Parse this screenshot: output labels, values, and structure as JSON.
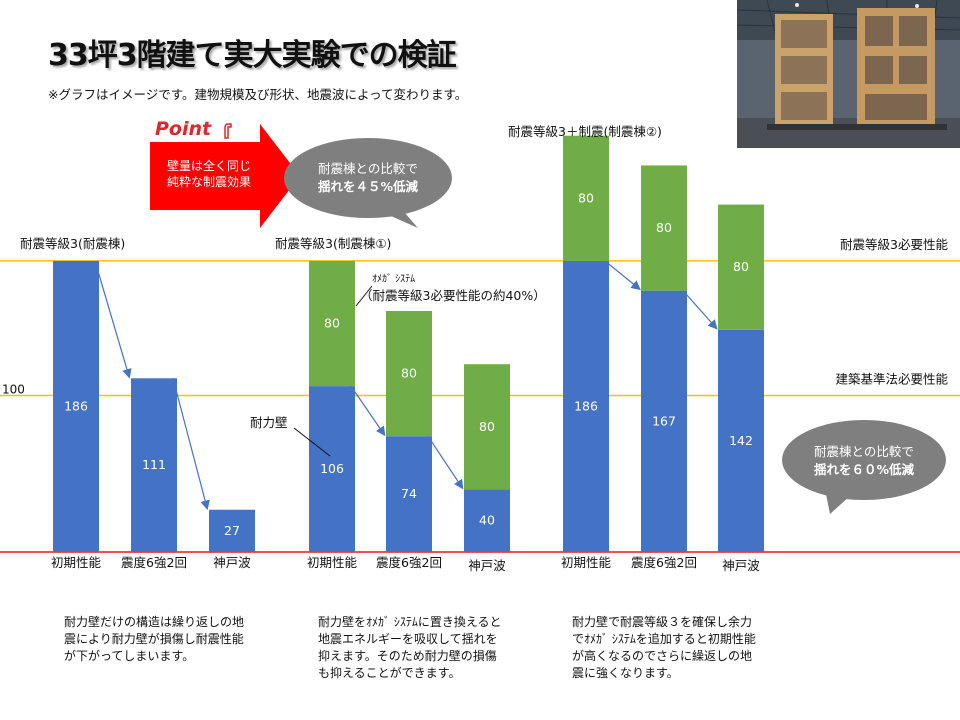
{
  "title": "33坪3階建て実大実験での検証",
  "note": "※グラフはイメージです。建物規模及び形状、地震波によって変わります。",
  "photo_alt": "実大実験の木造3階建て試験体",
  "point": {
    "label": "Point",
    "arrow_text": "壁量は全く同じ\n純粋な制震効果"
  },
  "bubbles": {
    "first": {
      "line1": "耐震棟との比較で",
      "line2": "揺れを４５%低減"
    },
    "second": {
      "line1": "耐震棟との比較で",
      "line2": "揺れを６０%低減"
    }
  },
  "annotations": {
    "omega": "ｵﾒｶﾞ ｼｽﾃﾑ",
    "omega_sub": "（耐震等級3必要性能の約40%）",
    "wall": "耐力壁"
  },
  "explanations": [
    "耐力壁だけの構造は繰り返しの地震により耐力壁が損傷し耐震性能が下がってしまいます。",
    "耐力壁をｵﾒｶﾞ ｼｽﾃﾑに置き換えると地震エネルギーを吸収して揺れを抑えます。そのため耐力壁の損傷も抑えることができます。",
    "耐力壁で耐震等級３を確保し余力でｵﾒｶﾞ ｼｽﾃﾑを追加すると初期性能が高くなるのでさらに繰返しの地震に強くなります。"
  ],
  "colors": {
    "blue": "#4472C4",
    "green": "#70AD47",
    "yellow_line": "#FFC000",
    "red_line": "#E31A1C",
    "arrow_red": "#FF0000",
    "bubble_gray": "#7F7F7F"
  },
  "chart_data": {
    "type": "bar",
    "stacked": true,
    "ylim": [
      0,
      266
    ],
    "reference_lines": [
      {
        "value": 186,
        "label": "耐震等級3必要性能",
        "color": "#FFC000"
      },
      {
        "value": 100,
        "label": "建築基準法必要性能",
        "color": "#FFC000",
        "axis_label": "100"
      },
      {
        "value": 0,
        "color": "#E31A1C"
      }
    ],
    "groups": [
      {
        "title": "耐震等級3(耐震棟)",
        "categories": [
          "初期性能",
          "震度6強2回",
          "神戸波"
        ],
        "series": [
          {
            "name": "耐力壁",
            "color": "#4472C4",
            "values": [
              186,
              111,
              27
            ]
          }
        ]
      },
      {
        "title": "耐震等級3(制震棟①)",
        "categories": [
          "初期性能",
          "震度6強2回",
          "神戸波"
        ],
        "series": [
          {
            "name": "耐力壁",
            "color": "#4472C4",
            "values": [
              106,
              74,
              40
            ]
          },
          {
            "name": "ｵﾒｶﾞ ｼｽﾃﾑ",
            "color": "#70AD47",
            "values": [
              80,
              80,
              80
            ]
          }
        ]
      },
      {
        "title": "耐震等級3＋制震(制震棟②)",
        "categories": [
          "初期性能",
          "震度6強2回",
          "神戸波"
        ],
        "series": [
          {
            "name": "耐力壁",
            "color": "#4472C4",
            "values": [
              186,
              167,
              142
            ]
          },
          {
            "name": "ｵﾒｶﾞ ｼｽﾃﾑ",
            "color": "#70AD47",
            "values": [
              80,
              80,
              80
            ]
          }
        ]
      }
    ]
  }
}
